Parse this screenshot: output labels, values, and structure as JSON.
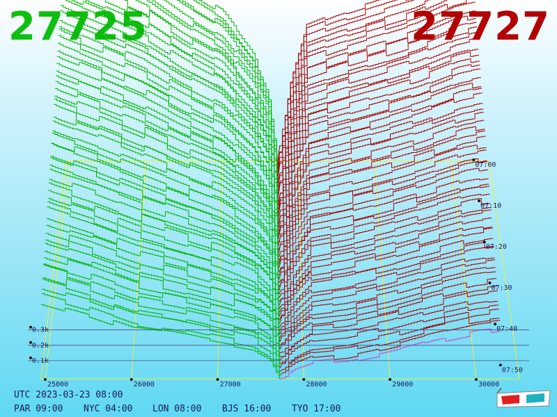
{
  "header": {
    "bid_price": "27725",
    "ask_price": "27727"
  },
  "footer": {
    "utc": "UTC 2023-03-23 08:00",
    "cities": [
      {
        "label": "PAR 09:00"
      },
      {
        "label": "NYC 04:00"
      },
      {
        "label": "LON 08:00"
      },
      {
        "label": "BJS 16:00"
      },
      {
        "label": "TYO 17:00"
      }
    ]
  },
  "colors": {
    "bid": "#00b400",
    "ask": "#aa0000",
    "grid": "#eeee44",
    "last_slice_ask": "#cc44cc"
  },
  "icons": {
    "glasses": "3d-glasses-icon"
  },
  "chart_data": {
    "type": "area",
    "title": "",
    "price_axis": {
      "label": "",
      "ticks": [
        25000,
        26000,
        27000,
        28000,
        29000,
        30000
      ],
      "range": [
        24900,
        30500
      ]
    },
    "volume_axis": {
      "label": "",
      "ticks": [
        "0.1k",
        "0.2k",
        "0.3k"
      ],
      "tick_values": [
        100,
        200,
        300
      ],
      "range": [
        0,
        480
      ]
    },
    "time_axis": {
      "label": "",
      "ticks": [
        "07:00",
        "07:10",
        "07:20",
        "07:30",
        "07:40",
        "07:50"
      ],
      "range": [
        "07:00",
        "07:59"
      ]
    },
    "mid_price": 27726,
    "grid": true,
    "series": [
      {
        "name": "bid",
        "side": "bid",
        "cumulative_depth_near_mid": {
          "price": [
            27726,
            27600,
            27400,
            27000,
            26500,
            26000,
            25500,
            25000,
            24900
          ],
          "volume_start": [
            0,
            120,
            180,
            250,
            290,
            340,
            370,
            400,
            410
          ],
          "volume_end": [
            0,
            35,
            50,
            60,
            75,
            85,
            110,
            130,
            135
          ]
        }
      },
      {
        "name": "ask",
        "side": "ask",
        "cumulative_depth_near_mid": {
          "price": [
            27726,
            27900,
            28100,
            28500,
            29000,
            29500,
            30000,
            30300
          ],
          "volume_start": [
            0,
            140,
            230,
            250,
            270,
            290,
            320,
            330
          ],
          "volume_end": [
            0,
            15,
            25,
            30,
            45,
            65,
            80,
            85
          ]
        }
      }
    ]
  }
}
